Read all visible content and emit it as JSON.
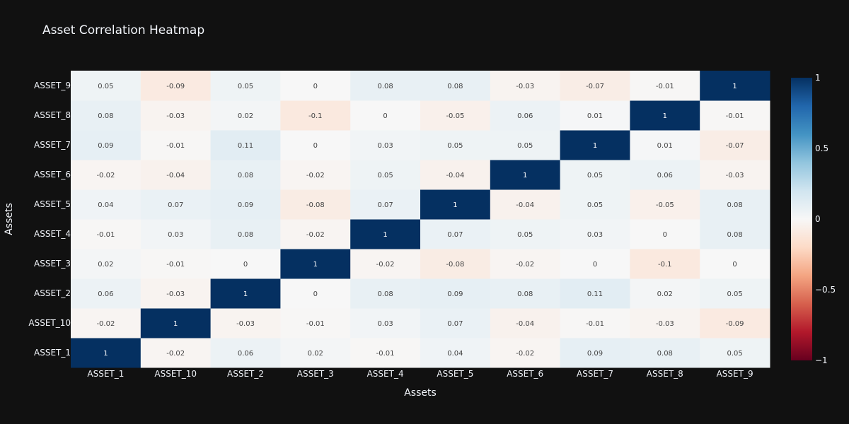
{
  "chart_data": {
    "type": "heatmap",
    "title": "Asset Correlation Heatmap",
    "xlabel": "Assets",
    "ylabel": "Assets",
    "x": [
      "ASSET_1",
      "ASSET_10",
      "ASSET_2",
      "ASSET_3",
      "ASSET_4",
      "ASSET_5",
      "ASSET_6",
      "ASSET_7",
      "ASSET_8",
      "ASSET_9"
    ],
    "y": [
      "ASSET_1",
      "ASSET_10",
      "ASSET_2",
      "ASSET_3",
      "ASSET_4",
      "ASSET_5",
      "ASSET_6",
      "ASSET_7",
      "ASSET_8",
      "ASSET_9"
    ],
    "z": [
      [
        1,
        -0.02,
        0.06,
        0.02,
        -0.01,
        0.04,
        -0.02,
        0.09,
        0.08,
        0.05
      ],
      [
        -0.02,
        1,
        -0.03,
        -0.01,
        0.03,
        0.07,
        -0.04,
        -0.01,
        -0.03,
        -0.09
      ],
      [
        0.06,
        -0.03,
        1,
        0,
        0.08,
        0.09,
        0.08,
        0.11,
        0.02,
        0.05
      ],
      [
        0.02,
        -0.01,
        0,
        1,
        -0.02,
        -0.08,
        -0.02,
        0,
        -0.1,
        0
      ],
      [
        -0.01,
        0.03,
        0.08,
        -0.02,
        1,
        0.07,
        0.05,
        0.03,
        0,
        0.08
      ],
      [
        0.04,
        0.07,
        0.09,
        -0.08,
        0.07,
        1,
        -0.04,
        0.05,
        -0.05,
        0.08
      ],
      [
        -0.02,
        -0.04,
        0.08,
        -0.02,
        0.05,
        -0.04,
        1,
        0.05,
        0.06,
        -0.03
      ],
      [
        0.09,
        -0.01,
        0.11,
        0,
        0.03,
        0.05,
        0.05,
        1,
        0.01,
        -0.07
      ],
      [
        0.08,
        -0.03,
        0.02,
        -0.1,
        0,
        -0.05,
        0.06,
        0.01,
        1,
        -0.01
      ],
      [
        0.05,
        -0.09,
        0.05,
        0,
        0.08,
        0.08,
        -0.03,
        -0.07,
        -0.01,
        1
      ]
    ],
    "zrange": [
      -1,
      1
    ],
    "colorscale": "RdBu",
    "colorbar_ticks": [
      "1",
      "0.5",
      "0",
      "−0.5",
      "−1"
    ]
  }
}
